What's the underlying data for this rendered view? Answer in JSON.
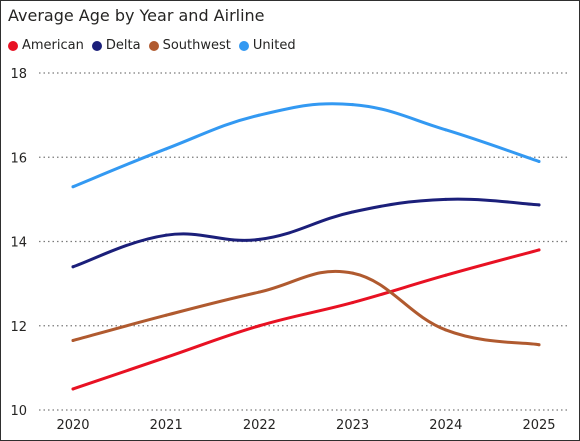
{
  "chart_data": {
    "type": "line",
    "title": "Average Age by Year and Airline",
    "xlabel": "",
    "ylabel": "",
    "categories": [
      "2020",
      "2021",
      "2022",
      "2023",
      "2024",
      "2025"
    ],
    "ylim": [
      10,
      18
    ],
    "yticks": [
      "10",
      "12",
      "14",
      "16",
      "18"
    ],
    "grid": true,
    "legend_position": "top-left",
    "series": [
      {
        "name": "American",
        "color": "#e81123",
        "values": [
          10.5,
          11.25,
          12.0,
          12.55,
          13.2,
          13.8
        ]
      },
      {
        "name": "Delta",
        "color": "#1b1f7a",
        "values": [
          13.4,
          14.15,
          14.05,
          14.7,
          15.0,
          14.87
        ]
      },
      {
        "name": "Southwest",
        "color": "#b05a2f",
        "values": [
          11.65,
          12.25,
          12.8,
          13.25,
          11.9,
          11.55
        ]
      },
      {
        "name": "United",
        "color": "#3399f2",
        "values": [
          15.3,
          16.2,
          17.0,
          17.25,
          16.65,
          15.9
        ]
      }
    ]
  }
}
